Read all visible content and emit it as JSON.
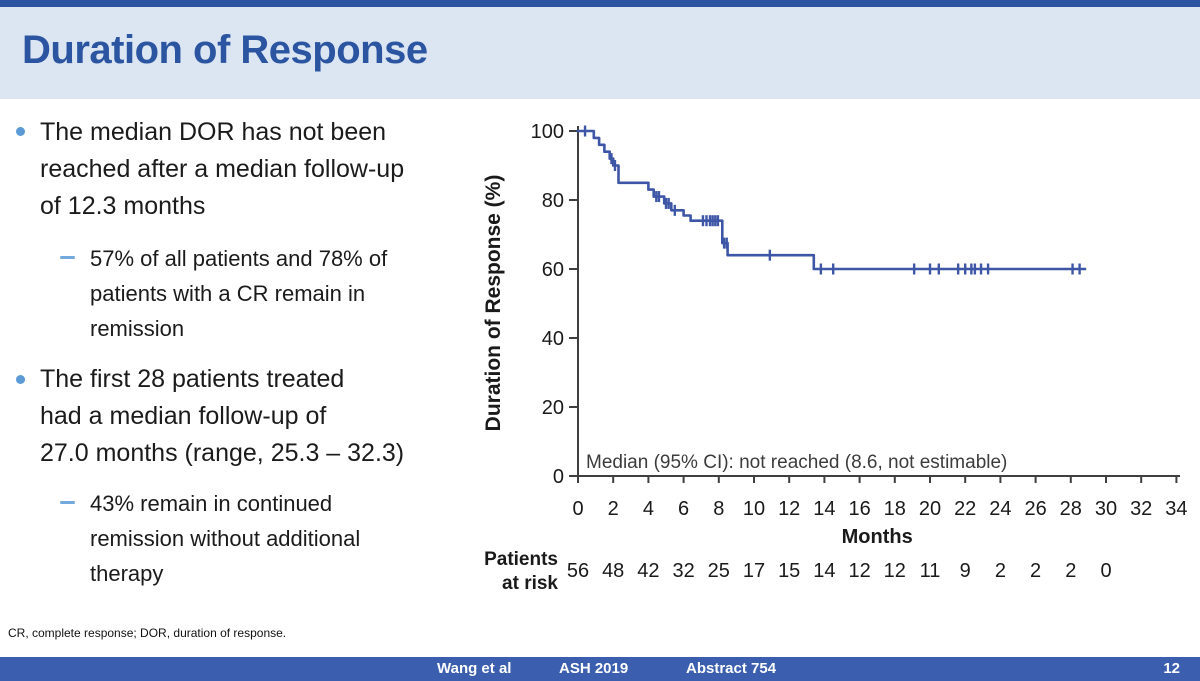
{
  "header": {
    "title": "Duration of Response"
  },
  "colors": {
    "accent_dark_blue": "#2d54a1",
    "header_background": "#dce6f2",
    "title_text": "#2b55a1",
    "footer_bar": "#3b5fae",
    "curve_blue": "#3e56a6",
    "bullet_dot": "#5b9bd5",
    "sub_dash": "#71a9dc"
  },
  "bullets": [
    {
      "level": 1,
      "lines": [
        "The median DOR has not been",
        "reached after a median follow-up",
        "of 12.3 months"
      ]
    },
    {
      "level": 2,
      "lines": [
        "57% of all patients and 78% of",
        "patients with a CR remain in",
        "remission"
      ]
    },
    {
      "level": 1,
      "lines": [
        "The first 28 patients treated",
        "had a median follow-up of",
        "27.0 months (range, 25.3 – 32.3)"
      ]
    },
    {
      "level": 2,
      "lines": [
        "43% remain in continued",
        "remission without additional",
        "therapy"
      ]
    }
  ],
  "chart_data": {
    "type": "line",
    "subtype": "kaplan-meier-step",
    "title": "",
    "xlabel": "Months",
    "ylabel": "Duration of Response (%)",
    "xlim": [
      0,
      34
    ],
    "ylim": [
      0,
      100
    ],
    "x_ticks": [
      0,
      2,
      4,
      6,
      8,
      10,
      12,
      14,
      16,
      18,
      20,
      22,
      24,
      26,
      28,
      30,
      32,
      34
    ],
    "y_ticks": [
      0,
      20,
      40,
      60,
      80,
      100
    ],
    "grid": false,
    "annotation": "Median (95% CI): not reached (8.6, not estimable)",
    "line_color": "#3e56a6",
    "series": [
      {
        "name": "Duration of response",
        "steps": [
          [
            0,
            100
          ],
          [
            0.9,
            100
          ],
          [
            0.9,
            98
          ],
          [
            1.2,
            98
          ],
          [
            1.2,
            96
          ],
          [
            1.5,
            96
          ],
          [
            1.5,
            94
          ],
          [
            1.8,
            94
          ],
          [
            1.8,
            92
          ],
          [
            2.0,
            92
          ],
          [
            2.0,
            90
          ],
          [
            2.3,
            90
          ],
          [
            2.3,
            85
          ],
          [
            4.0,
            85
          ],
          [
            4.0,
            83
          ],
          [
            4.3,
            83
          ],
          [
            4.3,
            81
          ],
          [
            4.9,
            81
          ],
          [
            4.9,
            79
          ],
          [
            5.3,
            79
          ],
          [
            5.3,
            77
          ],
          [
            6.0,
            77
          ],
          [
            6.0,
            75.5
          ],
          [
            6.4,
            75.5
          ],
          [
            6.4,
            74
          ],
          [
            8.2,
            74
          ],
          [
            8.2,
            67.5
          ],
          [
            8.5,
            67.5
          ],
          [
            8.5,
            64
          ],
          [
            13.4,
            64
          ],
          [
            13.4,
            60
          ],
          [
            28.8,
            60
          ]
        ],
        "censor_marks": [
          [
            0.4,
            100
          ],
          [
            1.9,
            92
          ],
          [
            2.1,
            90
          ],
          [
            4.45,
            81
          ],
          [
            4.6,
            81
          ],
          [
            5.0,
            79
          ],
          [
            5.15,
            79
          ],
          [
            5.5,
            77
          ],
          [
            7.1,
            74
          ],
          [
            7.3,
            74
          ],
          [
            7.5,
            74
          ],
          [
            7.65,
            74
          ],
          [
            7.8,
            74
          ],
          [
            7.95,
            74
          ],
          [
            8.3,
            67.5
          ],
          [
            8.45,
            67.5
          ],
          [
            10.9,
            64
          ],
          [
            13.8,
            60
          ],
          [
            14.5,
            60
          ],
          [
            19.1,
            60
          ],
          [
            20.0,
            60
          ],
          [
            20.5,
            60
          ],
          [
            21.6,
            60
          ],
          [
            22.0,
            60
          ],
          [
            22.35,
            60
          ],
          [
            22.55,
            60
          ],
          [
            22.9,
            60
          ],
          [
            23.3,
            60
          ],
          [
            28.1,
            60
          ],
          [
            28.5,
            60
          ]
        ]
      }
    ],
    "patients_at_risk": {
      "label_lines": [
        "Patients",
        "at risk"
      ],
      "months": [
        0,
        2,
        4,
        6,
        8,
        10,
        12,
        14,
        16,
        18,
        20,
        22,
        24,
        26,
        28,
        30
      ],
      "counts": [
        56,
        48,
        42,
        32,
        25,
        17,
        15,
        14,
        12,
        12,
        11,
        9,
        2,
        2,
        2,
        0
      ]
    }
  },
  "footnote": "CR, complete response; DOR, duration of response.",
  "footer": {
    "author": "Wang et al",
    "conference": "ASH 2019",
    "abstract": "Abstract 754",
    "page": "12"
  }
}
